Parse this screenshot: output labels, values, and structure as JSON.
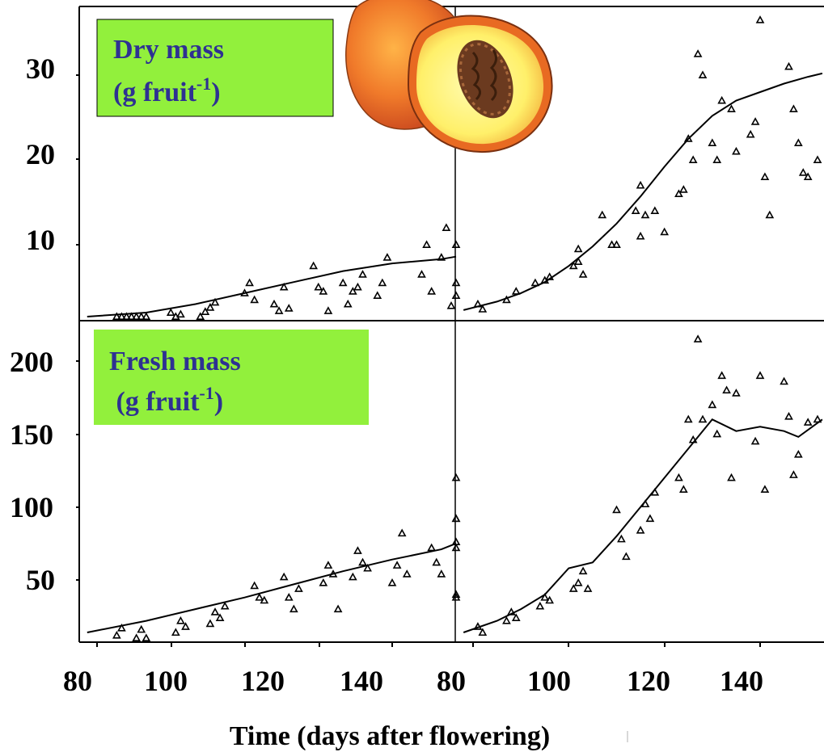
{
  "figure": {
    "xlabel": "Time (days after flowering)",
    "background": "#ffffff",
    "box_color": "#92f03c",
    "box_text_color": "#2e3192",
    "marker": "triangle"
  },
  "labels": {
    "dry": {
      "line1": "Dry mass",
      "line2_prefix": "(g fruit",
      "superscript": "-1",
      "line2_suffix": ")"
    },
    "fresh": {
      "line1": "Fresh mass",
      "line2_prefix": " (g fruit",
      "superscript": "-1",
      "line2_suffix": ")"
    }
  },
  "illustration": {
    "name": "peach-half",
    "colors": {
      "skin": "#f07a2a",
      "flesh": "#fff27a",
      "stone": "#6b3a1f"
    }
  },
  "chart_data": [
    {
      "type": "scatter",
      "panel": "dry-left",
      "ylabel": "Dry mass (g fruit-1)",
      "xlim": [
        78,
        156
      ],
      "ylim": [
        0,
        37
      ],
      "xticks": [
        80,
        100,
        120,
        140
      ],
      "yticks": [
        10,
        20,
        30
      ],
      "fit": {
        "x": [
          78,
          90,
          100,
          110,
          120,
          130,
          140,
          150,
          156
        ],
        "y": [
          1.2,
          2.0,
          3.0,
          4.3,
          5.6,
          6.9,
          7.8,
          8.3,
          8.6
        ]
      },
      "points": [
        [
          84,
          1
        ],
        [
          85,
          1.4
        ],
        [
          86,
          0.8
        ],
        [
          87,
          1.2
        ],
        [
          88,
          1
        ],
        [
          89,
          1.5
        ],
        [
          90,
          1.1
        ],
        [
          95,
          2
        ],
        [
          96,
          1.2
        ],
        [
          97,
          1.8
        ],
        [
          101,
          1.5
        ],
        [
          102,
          2.1
        ],
        [
          103,
          2.6
        ],
        [
          104,
          3.2
        ],
        [
          110,
          4.3
        ],
        [
          111,
          5.5
        ],
        [
          112,
          3.5
        ],
        [
          116,
          3
        ],
        [
          117,
          2.2
        ],
        [
          118,
          5
        ],
        [
          119,
          2.5
        ],
        [
          124,
          7.5
        ],
        [
          125,
          5
        ],
        [
          126,
          4.5
        ],
        [
          127,
          2.2
        ],
        [
          130,
          5.5
        ],
        [
          131,
          3
        ],
        [
          132,
          4.5
        ],
        [
          133,
          5
        ],
        [
          134,
          6.5
        ],
        [
          137,
          4
        ],
        [
          138,
          5.5
        ],
        [
          139,
          8.5
        ],
        [
          146,
          6.5
        ],
        [
          147,
          10
        ],
        [
          148,
          4.5
        ],
        [
          150,
          8.5
        ],
        [
          151,
          12
        ],
        [
          152,
          2.8
        ],
        [
          154,
          4
        ],
        [
          155,
          10
        ],
        [
          156,
          5.5
        ]
      ]
    },
    {
      "type": "scatter",
      "panel": "dry-right",
      "ylabel": "Dry mass (g fruit-1)",
      "xlim": [
        78,
        153
      ],
      "ylim": [
        0,
        37
      ],
      "xticks": [
        80,
        100,
        120,
        140
      ],
      "yticks": [
        10,
        20,
        30
      ],
      "fit": {
        "x": [
          78,
          85,
          90,
          95,
          100,
          105,
          110,
          115,
          120,
          125,
          130,
          135,
          140,
          145,
          150,
          153
        ],
        "y": [
          2.3,
          3.3,
          4.3,
          5.6,
          7.5,
          9.8,
          12.5,
          15.7,
          19.2,
          22.5,
          25.2,
          27.0,
          28.0,
          29.0,
          29.8,
          30.2
        ]
      },
      "points": [
        [
          81,
          3
        ],
        [
          82,
          2.4
        ],
        [
          87,
          3.5
        ],
        [
          89,
          4.5
        ],
        [
          93,
          5.5
        ],
        [
          95,
          5.8
        ],
        [
          96,
          6.2
        ],
        [
          101,
          7.5
        ],
        [
          102,
          8
        ],
        [
          103,
          6.5
        ],
        [
          102,
          9.5
        ],
        [
          107,
          13.5
        ],
        [
          109,
          10
        ],
        [
          110,
          10
        ],
        [
          114,
          14
        ],
        [
          115,
          17
        ],
        [
          116,
          13.5
        ],
        [
          115,
          11
        ],
        [
          118,
          14
        ],
        [
          120,
          11.5
        ],
        [
          123,
          16
        ],
        [
          124,
          16.5
        ],
        [
          125,
          22.5
        ],
        [
          126,
          20
        ],
        [
          127,
          32.5
        ],
        [
          128,
          30
        ],
        [
          130,
          22
        ],
        [
          131,
          20
        ],
        [
          132,
          27
        ],
        [
          134,
          26
        ],
        [
          135,
          21
        ],
        [
          138,
          23
        ],
        [
          139,
          24.5
        ],
        [
          140,
          36.5
        ],
        [
          141,
          18
        ],
        [
          142,
          13.5
        ],
        [
          146,
          31
        ],
        [
          147,
          26
        ],
        [
          148,
          22
        ],
        [
          149,
          18.5
        ],
        [
          150,
          18
        ],
        [
          152,
          20
        ]
      ]
    },
    {
      "type": "scatter",
      "panel": "fresh-left",
      "ylabel": "Fresh mass (g fruit-1)",
      "xlim": [
        78,
        156
      ],
      "ylim": [
        0,
        220
      ],
      "xticks": [
        80,
        100,
        120,
        140
      ],
      "yticks": [
        50,
        100,
        150,
        200
      ],
      "fit": {
        "x": [
          78,
          90,
          100,
          110,
          120,
          130,
          140,
          150,
          156
        ],
        "y": [
          14,
          22,
          30,
          38,
          47,
          56,
          64,
          71,
          75
        ]
      },
      "points": [
        [
          84,
          12
        ],
        [
          85,
          17
        ],
        [
          88,
          10
        ],
        [
          89,
          16
        ],
        [
          90,
          10
        ],
        [
          96,
          14
        ],
        [
          97,
          22
        ],
        [
          98,
          18
        ],
        [
          103,
          20
        ],
        [
          104,
          28
        ],
        [
          105,
          24
        ],
        [
          106,
          32
        ],
        [
          112,
          46
        ],
        [
          113,
          38
        ],
        [
          114,
          36
        ],
        [
          118,
          52
        ],
        [
          119,
          38
        ],
        [
          120,
          30
        ],
        [
          121,
          44
        ],
        [
          126,
          48
        ],
        [
          127,
          60
        ],
        [
          128,
          54
        ],
        [
          129,
          30
        ],
        [
          132,
          52
        ],
        [
          133,
          70
        ],
        [
          134,
          62
        ],
        [
          135,
          58
        ],
        [
          140,
          48
        ],
        [
          141,
          60
        ],
        [
          142,
          82
        ],
        [
          143,
          54
        ],
        [
          148,
          72
        ],
        [
          149,
          62
        ],
        [
          150,
          54
        ],
        [
          153,
          120
        ],
        [
          154,
          92
        ],
        [
          155,
          40
        ],
        [
          156,
          76
        ],
        [
          157,
          72
        ],
        [
          158,
          92
        ],
        [
          159,
          38
        ]
      ]
    },
    {
      "type": "scatter",
      "panel": "fresh-right",
      "ylabel": "Fresh mass (g fruit-1)",
      "xlim": [
        78,
        153
      ],
      "ylim": [
        0,
        220
      ],
      "xticks": [
        80,
        100,
        120,
        140
      ],
      "yticks": [
        50,
        100,
        150,
        200
      ],
      "fit": {
        "x": [
          78,
          85,
          90,
          95,
          100,
          105,
          110,
          115,
          120,
          125,
          130,
          135,
          140,
          145,
          148,
          153
        ],
        "y": [
          14,
          22,
          30,
          40,
          58,
          62,
          80,
          100,
          120,
          140,
          160,
          152,
          155,
          152,
          148,
          160
        ]
      },
      "points": [
        [
          81,
          18
        ],
        [
          82,
          14
        ],
        [
          87,
          22
        ],
        [
          88,
          28
        ],
        [
          89,
          24
        ],
        [
          94,
          32
        ],
        [
          95,
          38
        ],
        [
          96,
          36
        ],
        [
          101,
          44
        ],
        [
          102,
          48
        ],
        [
          103,
          56
        ],
        [
          104,
          44
        ],
        [
          110,
          98
        ],
        [
          111,
          78
        ],
        [
          112,
          66
        ],
        [
          115,
          84
        ],
        [
          116,
          102
        ],
        [
          117,
          92
        ],
        [
          118,
          110
        ],
        [
          123,
          120
        ],
        [
          124,
          112
        ],
        [
          125,
          160
        ],
        [
          126,
          146
        ],
        [
          127,
          215
        ],
        [
          128,
          160
        ],
        [
          130,
          170
        ],
        [
          131,
          150
        ],
        [
          132,
          190
        ],
        [
          133,
          180
        ],
        [
          134,
          120
        ],
        [
          135,
          178
        ],
        [
          139,
          145
        ],
        [
          140,
          190
        ],
        [
          141,
          112
        ],
        [
          145,
          186
        ],
        [
          146,
          162
        ],
        [
          147,
          122
        ],
        [
          148,
          136
        ],
        [
          150,
          158
        ],
        [
          152,
          160
        ]
      ]
    }
  ],
  "axis_tick_labels": {
    "dry_y": [
      "30",
      "20",
      "10"
    ],
    "fresh_y": [
      "200",
      "150",
      "100",
      "50"
    ],
    "x_left": [
      "80",
      "100",
      "120",
      "140"
    ],
    "x_right": [
      "80",
      "100",
      "120",
      "140"
    ]
  }
}
